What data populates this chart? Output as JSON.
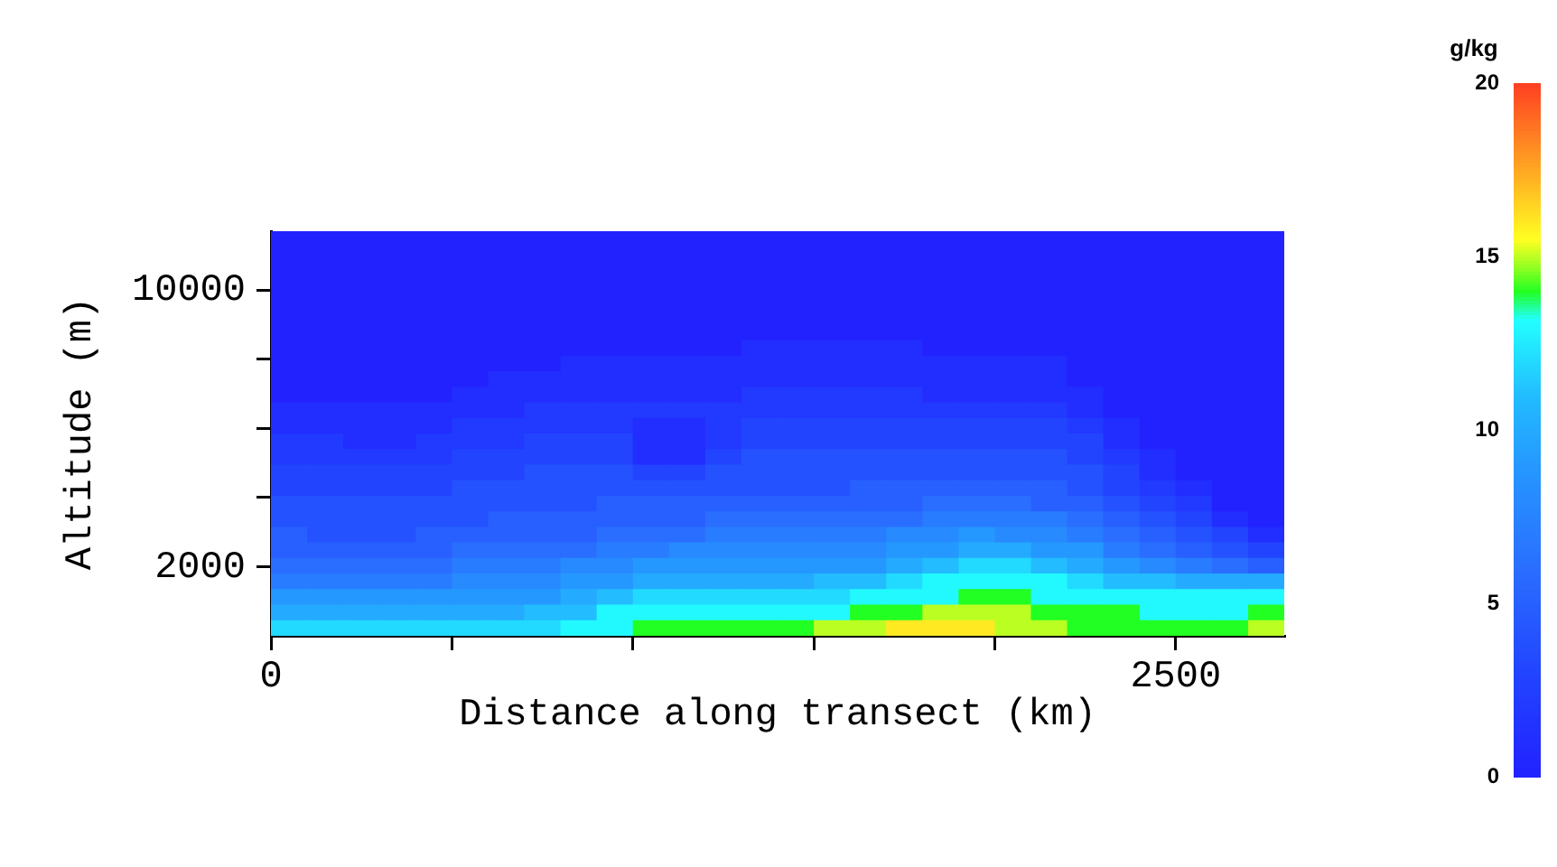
{
  "chart_data": {
    "type": "heatmap",
    "xlabel": "Distance along transect (km)",
    "ylabel": "Altitude (m)",
    "clabel": "g/kg",
    "x": [
      50,
      150,
      250,
      350,
      450,
      550,
      650,
      750,
      850,
      950,
      1050,
      1150,
      1250,
      1350,
      1450,
      1550,
      1650,
      1750,
      1850,
      1950,
      2050,
      2150,
      2250,
      2350,
      2450,
      2550,
      2650,
      2750
    ],
    "y": [
      11475,
      11025,
      10575,
      10125,
      9675,
      9225,
      8775,
      8325,
      7875,
      7425,
      6975,
      6525,
      6075,
      5625,
      5175,
      4725,
      4275,
      3825,
      3375,
      2925,
      2475,
      2025,
      1575,
      1125,
      675,
      225
    ],
    "cells": [
      [
        0,
        0,
        0,
        0,
        0,
        0,
        0,
        0,
        0,
        0,
        0,
        0,
        0,
        0,
        0,
        0,
        0,
        0,
        0,
        0,
        0,
        0,
        0,
        0,
        0,
        0,
        0,
        0
      ],
      [
        0,
        0,
        0,
        0,
        0,
        0,
        0,
        0,
        0,
        0,
        0,
        0,
        0,
        0,
        0,
        0,
        0,
        0,
        0,
        0,
        0,
        0,
        0,
        0,
        0,
        0,
        0,
        0
      ],
      [
        0,
        0,
        0,
        0,
        0,
        0,
        0,
        0,
        0,
        0,
        0,
        0,
        0,
        0,
        0,
        0,
        0,
        0,
        0,
        0,
        0,
        0,
        0,
        0,
        0,
        0,
        0,
        0
      ],
      [
        0,
        0,
        0,
        0,
        0,
        0,
        0,
        0,
        0,
        0,
        0,
        0,
        0,
        0,
        0,
        0,
        0,
        0,
        0,
        0,
        0,
        0,
        0,
        0,
        0,
        0,
        0,
        0
      ],
      [
        0,
        0,
        0,
        0,
        0,
        0,
        0,
        0,
        0,
        0,
        0,
        0,
        0,
        0,
        0,
        0,
        0,
        0,
        0,
        0,
        0,
        0,
        0,
        0,
        0,
        0,
        0,
        0
      ],
      [
        0,
        0,
        0,
        0,
        0,
        0,
        0,
        0,
        0,
        0,
        0,
        0,
        0,
        0,
        0,
        0,
        0,
        0,
        0,
        0,
        0,
        0,
        0,
        0,
        0,
        0,
        0,
        0
      ],
      [
        0,
        0,
        0,
        0,
        0,
        0,
        0,
        0,
        0,
        0,
        0,
        0,
        0,
        0,
        0,
        0,
        0,
        0,
        0,
        0,
        0,
        0,
        0,
        0,
        0,
        0,
        0,
        0
      ],
      [
        0,
        0,
        0,
        0,
        0,
        0,
        0,
        0,
        0,
        0,
        0,
        0,
        0,
        1,
        1,
        1,
        1,
        1,
        0,
        0,
        0,
        0,
        0,
        0,
        0,
        0,
        0,
        0
      ],
      [
        0,
        0,
        0,
        0,
        0,
        0,
        0,
        0,
        1,
        1,
        1,
        1,
        1,
        1,
        1,
        1,
        1,
        1,
        1,
        1,
        1,
        1,
        0,
        0,
        0,
        0,
        0,
        0
      ],
      [
        0,
        0,
        0,
        0,
        0,
        0,
        1,
        1,
        1,
        1,
        1,
        1,
        1,
        1,
        1,
        1,
        1,
        1,
        1,
        1,
        1,
        1,
        0,
        0,
        0,
        0,
        0,
        0
      ],
      [
        0,
        0,
        0,
        0,
        0,
        1,
        1,
        1,
        1,
        1,
        1,
        1,
        1,
        2,
        2,
        2,
        2,
        2,
        1,
        1,
        1,
        1,
        1,
        0,
        0,
        0,
        0,
        0
      ],
      [
        1,
        1,
        1,
        1,
        1,
        1,
        1,
        2,
        2,
        2,
        2,
        2,
        2,
        2,
        2,
        2,
        2,
        2,
        2,
        2,
        2,
        2,
        1,
        0,
        0,
        0,
        0,
        0
      ],
      [
        1,
        1,
        1,
        1,
        1,
        2,
        2,
        2,
        2,
        2,
        1,
        1,
        2,
        3,
        3,
        3,
        3,
        3,
        3,
        3,
        3,
        3,
        2,
        1,
        0,
        0,
        0,
        0
      ],
      [
        2,
        2,
        1,
        1,
        2,
        2,
        2,
        3,
        3,
        3,
        1,
        1,
        2,
        3,
        3,
        3,
        3,
        3,
        3,
        3,
        3,
        3,
        3,
        1,
        0,
        0,
        0,
        0
      ],
      [
        2,
        2,
        2,
        2,
        2,
        3,
        3,
        3,
        3,
        3,
        1,
        1,
        3,
        4,
        4,
        4,
        4,
        4,
        4,
        4,
        4,
        4,
        3,
        2,
        1,
        0,
        0,
        0
      ],
      [
        3,
        3,
        3,
        3,
        3,
        3,
        3,
        4,
        4,
        4,
        3,
        3,
        4,
        4,
        4,
        4,
        4,
        4,
        4,
        4,
        4,
        4,
        4,
        3,
        1,
        0,
        0,
        0
      ],
      [
        3,
        3,
        3,
        3,
        3,
        4,
        4,
        4,
        4,
        4,
        4,
        4,
        4,
        4,
        4,
        4,
        5,
        5,
        5,
        5,
        5,
        5,
        4,
        3,
        2,
        1,
        0,
        0
      ],
      [
        4,
        4,
        4,
        4,
        4,
        4,
        4,
        4,
        4,
        5,
        5,
        5,
        5,
        5,
        5,
        5,
        5,
        5,
        6,
        6,
        6,
        5,
        5,
        4,
        3,
        2,
        0,
        0
      ],
      [
        4,
        4,
        4,
        4,
        4,
        4,
        5,
        5,
        5,
        5,
        5,
        5,
        6,
        6,
        6,
        6,
        6,
        6,
        7,
        7,
        7,
        7,
        6,
        5,
        4,
        3,
        1,
        0
      ],
      [
        5,
        4,
        4,
        4,
        5,
        5,
        5,
        5,
        5,
        6,
        6,
        6,
        7,
        7,
        7,
        7,
        7,
        8,
        8,
        9,
        8,
        8,
        7,
        6,
        5,
        4,
        3,
        1
      ],
      [
        5,
        5,
        5,
        5,
        5,
        6,
        6,
        6,
        6,
        7,
        7,
        8,
        8,
        8,
        8,
        8,
        8,
        9,
        9,
        10,
        10,
        9,
        9,
        7,
        6,
        5,
        4,
        3
      ],
      [
        6,
        6,
        6,
        6,
        6,
        7,
        7,
        7,
        8,
        8,
        9,
        9,
        9,
        9,
        9,
        9,
        9,
        10,
        11,
        12,
        12,
        11,
        10,
        9,
        8,
        7,
        6,
        5
      ],
      [
        7,
        7,
        7,
        7,
        7,
        8,
        8,
        8,
        9,
        9,
        10,
        10,
        10,
        10,
        10,
        11,
        11,
        12,
        13,
        13,
        13,
        13,
        12,
        11,
        11,
        10,
        10,
        10
      ],
      [
        9,
        9,
        9,
        9,
        9,
        9,
        9,
        9,
        10,
        11,
        12,
        12,
        12,
        12,
        12,
        12,
        13,
        13,
        13,
        14,
        14,
        13,
        13,
        13,
        13,
        13,
        13,
        13
      ],
      [
        10,
        10,
        10,
        10,
        10,
        10,
        10,
        11,
        11,
        13,
        13,
        13,
        13,
        13,
        13,
        13,
        14,
        14,
        15,
        15,
        15,
        14,
        14,
        14,
        13,
        13,
        13,
        14
      ],
      [
        12,
        12,
        12,
        12,
        12,
        12,
        12,
        12,
        13,
        13,
        14,
        14,
        14,
        14,
        14,
        15,
        15,
        16,
        16,
        16,
        15,
        15,
        14,
        14,
        14,
        14,
        14,
        15
      ]
    ],
    "xlim": [
      0,
      2800
    ],
    "xticks": [
      0,
      {
        "value": 500,
        "label": null
      },
      {
        "value": 1000,
        "label": null
      },
      {
        "value": 1500,
        "label": null
      },
      {
        "value": 2000,
        "label": null
      },
      2500
    ],
    "ylim": [
      0,
      11700
    ],
    "yticks": [
      2000,
      {
        "value": 4000,
        "label": null
      },
      {
        "value": 6000,
        "label": null
      },
      {
        "value": 8000,
        "label": null
      },
      10000
    ],
    "clim": [
      0,
      20
    ],
    "cticks": [
      0,
      5,
      10,
      15,
      20
    ]
  }
}
